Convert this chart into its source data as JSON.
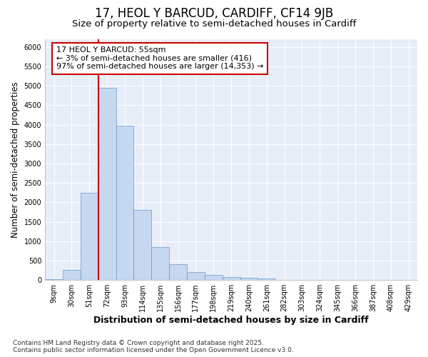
{
  "title": "17, HEOL Y BARCUD, CARDIFF, CF14 9JB",
  "subtitle": "Size of property relative to semi-detached houses in Cardiff",
  "xlabel": "Distribution of semi-detached houses by size in Cardiff",
  "ylabel": "Number of semi-detached properties",
  "categories": [
    "9sqm",
    "30sqm",
    "51sqm",
    "72sqm",
    "93sqm",
    "114sqm",
    "135sqm",
    "156sqm",
    "177sqm",
    "198sqm",
    "219sqm",
    "240sqm",
    "261sqm",
    "282sqm",
    "303sqm",
    "324sqm",
    "345sqm",
    "366sqm",
    "387sqm",
    "408sqm",
    "429sqm"
  ],
  "values": [
    30,
    260,
    2250,
    4950,
    3970,
    1800,
    850,
    410,
    210,
    125,
    80,
    60,
    40,
    0,
    0,
    0,
    0,
    0,
    0,
    0,
    0
  ],
  "bar_color": "#c5d8f0",
  "bar_edge_color": "#6699cc",
  "vline_color": "#cc0000",
  "vline_x": 2.5,
  "annotation_text": "17 HEOL Y BARCUD: 55sqm\n← 3% of semi-detached houses are smaller (416)\n97% of semi-detached houses are larger (14,353) →",
  "annotation_box_facecolor": "#ffffff",
  "annotation_box_edgecolor": "#cc0000",
  "ylim": [
    0,
    6200
  ],
  "yticks": [
    0,
    500,
    1000,
    1500,
    2000,
    2500,
    3000,
    3500,
    4000,
    4500,
    5000,
    5500,
    6000
  ],
  "footer": "Contains HM Land Registry data © Crown copyright and database right 2025.\nContains public sector information licensed under the Open Government Licence v3.0.",
  "bg_color": "#ffffff",
  "plot_bg_color": "#e8eef8",
  "grid_color": "#ffffff",
  "title_fontsize": 12,
  "subtitle_fontsize": 9.5,
  "tick_fontsize": 7,
  "ylabel_fontsize": 8.5,
  "xlabel_fontsize": 9,
  "annotation_fontsize": 8,
  "footer_fontsize": 6.5
}
